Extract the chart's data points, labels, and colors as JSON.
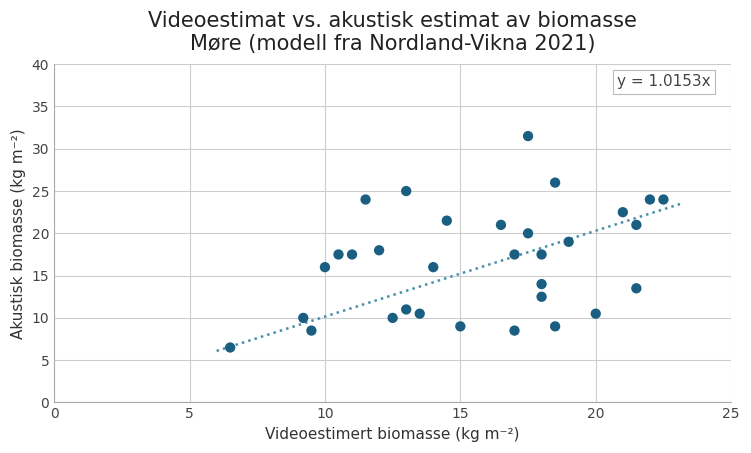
{
  "title_line1": "Videoestimat vs. akustisk estimat av biomasse",
  "title_line2": "Møre (modell fra Nordland-Vikna 2021)",
  "xlabel": "Videoestimert biomasse (kg m⁻²)",
  "ylabel": "Akustisk biomasse (kg m⁻²)",
  "equation_label": "y = 1.0153x",
  "scatter_color": "#1a5e82",
  "line_color": "#4a8faa",
  "x_data": [
    6.5,
    9.2,
    9.5,
    10.0,
    10.5,
    11.0,
    11.5,
    12.0,
    12.5,
    13.0,
    13.0,
    13.5,
    14.0,
    14.5,
    15.0,
    16.5,
    17.0,
    17.0,
    17.5,
    17.5,
    18.0,
    18.0,
    18.0,
    18.5,
    18.5,
    19.0,
    20.0,
    21.0,
    21.5,
    21.5,
    22.0,
    22.5
  ],
  "y_data": [
    6.5,
    10.0,
    8.5,
    16.0,
    17.5,
    17.5,
    24.0,
    18.0,
    10.0,
    11.0,
    25.0,
    10.5,
    16.0,
    21.5,
    9.0,
    21.0,
    17.5,
    8.5,
    20.0,
    31.5,
    14.0,
    12.5,
    17.5,
    9.0,
    26.0,
    19.0,
    10.5,
    22.5,
    13.5,
    21.0,
    24.0,
    24.0
  ],
  "xlim": [
    0,
    25
  ],
  "ylim": [
    0,
    40
  ],
  "xticks": [
    0,
    5,
    10,
    15,
    20,
    25
  ],
  "yticks": [
    0,
    5,
    10,
    15,
    20,
    25,
    30,
    35,
    40
  ],
  "slope": 1.0153,
  "line_x_start": 6.0,
  "line_x_end": 23.2,
  "marker_size": 55,
  "title_fontsize": 15,
  "axis_label_fontsize": 11,
  "tick_fontsize": 10,
  "eq_fontsize": 11,
  "background_color": "#ffffff",
  "grid_color": "#cccccc"
}
